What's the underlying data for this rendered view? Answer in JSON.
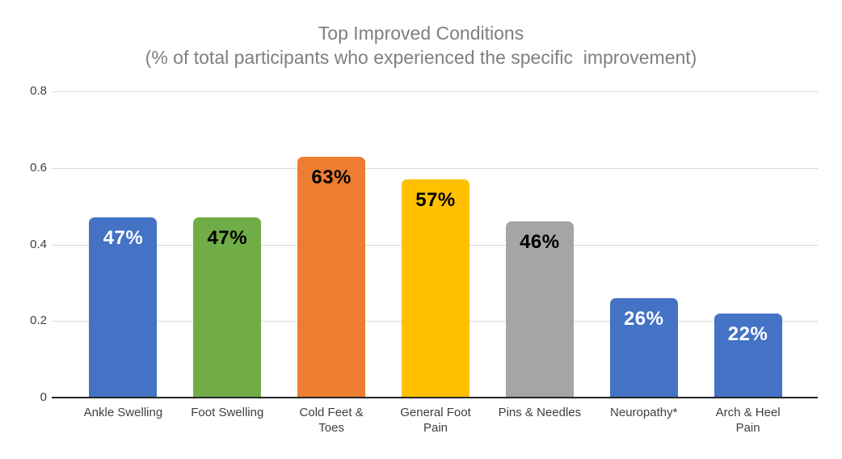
{
  "chart_data": {
    "type": "bar",
    "title": "Top Improved Conditions",
    "subtitle": "(% of total participants who experienced the specific  improvement)",
    "categories": [
      "Ankle Swelling",
      "Foot Swelling",
      "Cold Feet &\nToes",
      "General Foot\nPain",
      "Pins & Needles",
      "Neuropathy*",
      "Arch & Heel\nPain"
    ],
    "values": [
      0.47,
      0.47,
      0.63,
      0.57,
      0.46,
      0.26,
      0.22
    ],
    "value_labels": [
      "47%",
      "47%",
      "63%",
      "57%",
      "46%",
      "26%",
      "22%"
    ],
    "bar_colors": [
      "#4472C4",
      "#70AD47",
      "#ED7D31",
      "#FFC000",
      "#A5A5A5",
      "#4472C4",
      "#4472C4"
    ],
    "value_label_colors": [
      "#FFFFFF",
      "#000000",
      "#000000",
      "#000000",
      "#000000",
      "#FFFFFF",
      "#FFFFFF"
    ],
    "xlabel": "",
    "ylabel": "",
    "ylim": [
      0,
      0.8
    ],
    "yticks": [
      {
        "value": 0.8,
        "label": "0.8"
      },
      {
        "value": 0.6,
        "label": "0.6"
      },
      {
        "value": 0.4,
        "label": "0.4"
      },
      {
        "value": 0.2,
        "label": "0.2"
      },
      {
        "value": 0,
        "label": "0"
      }
    ],
    "grid": true,
    "legend": "none",
    "colors": {
      "title_text": "#7F7F7F",
      "gridline": "#D9D9D9",
      "axis_line": "#262626",
      "tick_label_text": "#404040",
      "category_label_text": "#404040",
      "background": "#FFFFFF"
    }
  }
}
